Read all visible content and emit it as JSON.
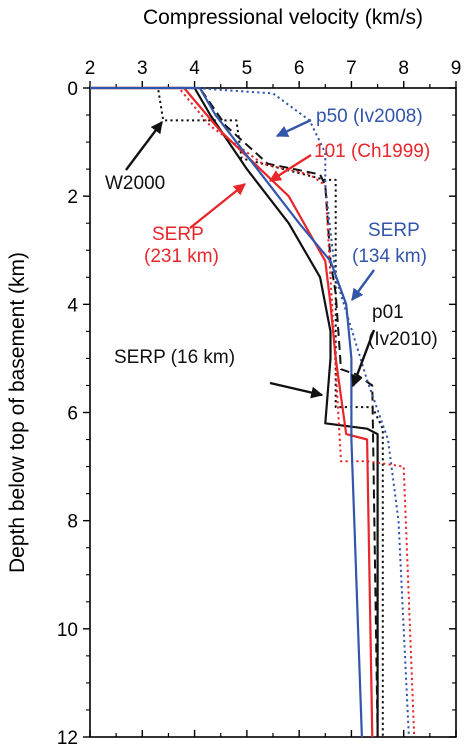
{
  "chart_data": {
    "type": "line",
    "xlabel": "Compressional velocity (km/s)",
    "ylabel": "Depth below top of basement (km)",
    "xlim": [
      2,
      9
    ],
    "ylim": [
      0,
      12
    ],
    "y_inverted": true,
    "x_axis_position": "top",
    "x_ticks": [
      "2",
      "3",
      "4",
      "5",
      "6",
      "7",
      "8",
      "9"
    ],
    "y_ticks": [
      "0",
      "2",
      "4",
      "6",
      "8",
      "10",
      "12"
    ],
    "grid": false,
    "colors": {
      "black": "#111111",
      "red": "#e8262b",
      "blue": "#3355aa"
    },
    "series": [
      {
        "name": "W2000",
        "color": "black",
        "dash": "dotted",
        "x": [
          2.0,
          3.3,
          3.4,
          4.8,
          4.9,
          6.5,
          6.7,
          6.7,
          7.4,
          7.6,
          7.6
        ],
        "y": [
          0.0,
          0.0,
          0.6,
          0.6,
          1.3,
          1.7,
          1.7,
          5.9,
          5.9,
          6.3,
          12.0
        ]
      },
      {
        "name": "SERP (16 km)",
        "color": "black",
        "dash": "solid",
        "x": [
          2.0,
          4.0,
          4.3,
          5.0,
          5.8,
          6.4,
          6.6,
          6.6,
          6.5,
          7.3,
          7.5,
          7.5
        ],
        "y": [
          0.0,
          0.0,
          0.5,
          1.5,
          2.5,
          3.5,
          4.5,
          5.0,
          6.2,
          6.3,
          6.4,
          12.0
        ]
      },
      {
        "name": "p01 (Iv2010)",
        "color": "black",
        "dash": "dashed",
        "x": [
          2.0,
          4.1,
          4.6,
          5.4,
          6.4,
          6.5,
          6.6,
          6.7,
          6.8,
          7.1,
          7.4,
          7.5
        ],
        "y": [
          0.0,
          0.0,
          0.7,
          1.4,
          1.6,
          1.8,
          3.2,
          3.8,
          5.2,
          5.3,
          5.5,
          12.0
        ]
      },
      {
        "name": "SERP (231 km)",
        "color": "red",
        "dash": "solid",
        "x": [
          2.0,
          3.8,
          4.5,
          5.8,
          6.5,
          6.6,
          6.7,
          6.9,
          7.3,
          7.4
        ],
        "y": [
          0.0,
          0.0,
          0.8,
          2.0,
          3.2,
          4.0,
          5.0,
          6.4,
          6.5,
          12.0
        ]
      },
      {
        "name": "101 (Ch1999)",
        "color": "red",
        "dash": "dotted",
        "x": [
          2.0,
          3.7,
          4.3,
          5.3,
          6.2,
          6.5,
          6.6,
          6.8,
          7.3,
          8.0,
          8.2
        ],
        "y": [
          0.0,
          0.0,
          0.7,
          1.4,
          1.6,
          1.8,
          3.5,
          6.9,
          6.9,
          7.0,
          12.0
        ]
      },
      {
        "name": "SERP (134 km)",
        "color": "blue",
        "dash": "solid",
        "x": [
          2.0,
          4.1,
          4.4,
          5.2,
          6.0,
          6.6,
          6.9,
          7.0,
          7.0,
          7.2
        ],
        "y": [
          0.0,
          0.0,
          0.5,
          1.5,
          2.5,
          3.2,
          4.0,
          5.0,
          6.5,
          12.0
        ]
      },
      {
        "name": "p50 (Iv2008)",
        "color": "blue",
        "dash": "dotted",
        "x": [
          2.0,
          4.0,
          5.5,
          6.2,
          6.5,
          6.5,
          6.7,
          7.3,
          7.7,
          7.9,
          8.1
        ],
        "y": [
          0.0,
          0.0,
          0.1,
          0.6,
          1.2,
          1.8,
          3.5,
          5.4,
          6.5,
          8.0,
          12.0
        ]
      }
    ],
    "annotations": [
      {
        "text": "W2000",
        "color": "black"
      },
      {
        "text": "p50 (Iv2008)",
        "color": "blue"
      },
      {
        "text": "101 (Ch1999)",
        "color": "red"
      },
      {
        "text": "SERP",
        "color": "red"
      },
      {
        "text": "(231 km)",
        "color": "red"
      },
      {
        "text": "SERP",
        "color": "blue"
      },
      {
        "text": "(134 km)",
        "color": "blue"
      },
      {
        "text": "p01",
        "color": "black"
      },
      {
        "text": "(Iv2010)",
        "color": "black"
      },
      {
        "text": "SERP (16 km)",
        "color": "black"
      }
    ]
  }
}
